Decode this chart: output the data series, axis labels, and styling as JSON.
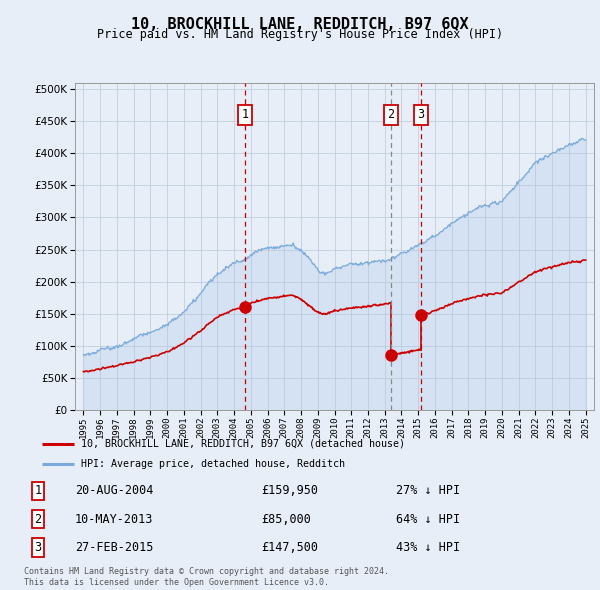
{
  "title": "10, BROCKHILL LANE, REDDITCH, B97 6QX",
  "subtitle": "Price paid vs. HM Land Registry's House Price Index (HPI)",
  "legend_label_red": "10, BROCKHILL LANE, REDDITCH, B97 6QX (detached house)",
  "legend_label_blue": "HPI: Average price, detached house, Redditch",
  "footer_line1": "Contains HM Land Registry data © Crown copyright and database right 2024.",
  "footer_line2": "This data is licensed under the Open Government Licence v3.0.",
  "transactions": [
    {
      "num": 1,
      "date": "20-AUG-2004",
      "price": 159950,
      "pct": "27%",
      "dir": "↓",
      "year": 2004.64,
      "vline_style": "red_dashed"
    },
    {
      "num": 2,
      "date": "10-MAY-2013",
      "price": 85000,
      "pct": "64%",
      "dir": "↓",
      "year": 2013.36,
      "vline_style": "grey_dashed"
    },
    {
      "num": 3,
      "date": "27-FEB-2015",
      "price": 147500,
      "pct": "43%",
      "dir": "↓",
      "year": 2015.16,
      "vline_style": "red_dashed"
    }
  ],
  "ylim": [
    0,
    510000
  ],
  "xlim_start": 1994.5,
  "xlim_end": 2025.5,
  "bg_color": "#e8eef8",
  "plot_bg_color": "#e8eef8",
  "red_color": "#cc0000",
  "blue_color": "#7aaadd",
  "blue_fill": "#c8daf0"
}
